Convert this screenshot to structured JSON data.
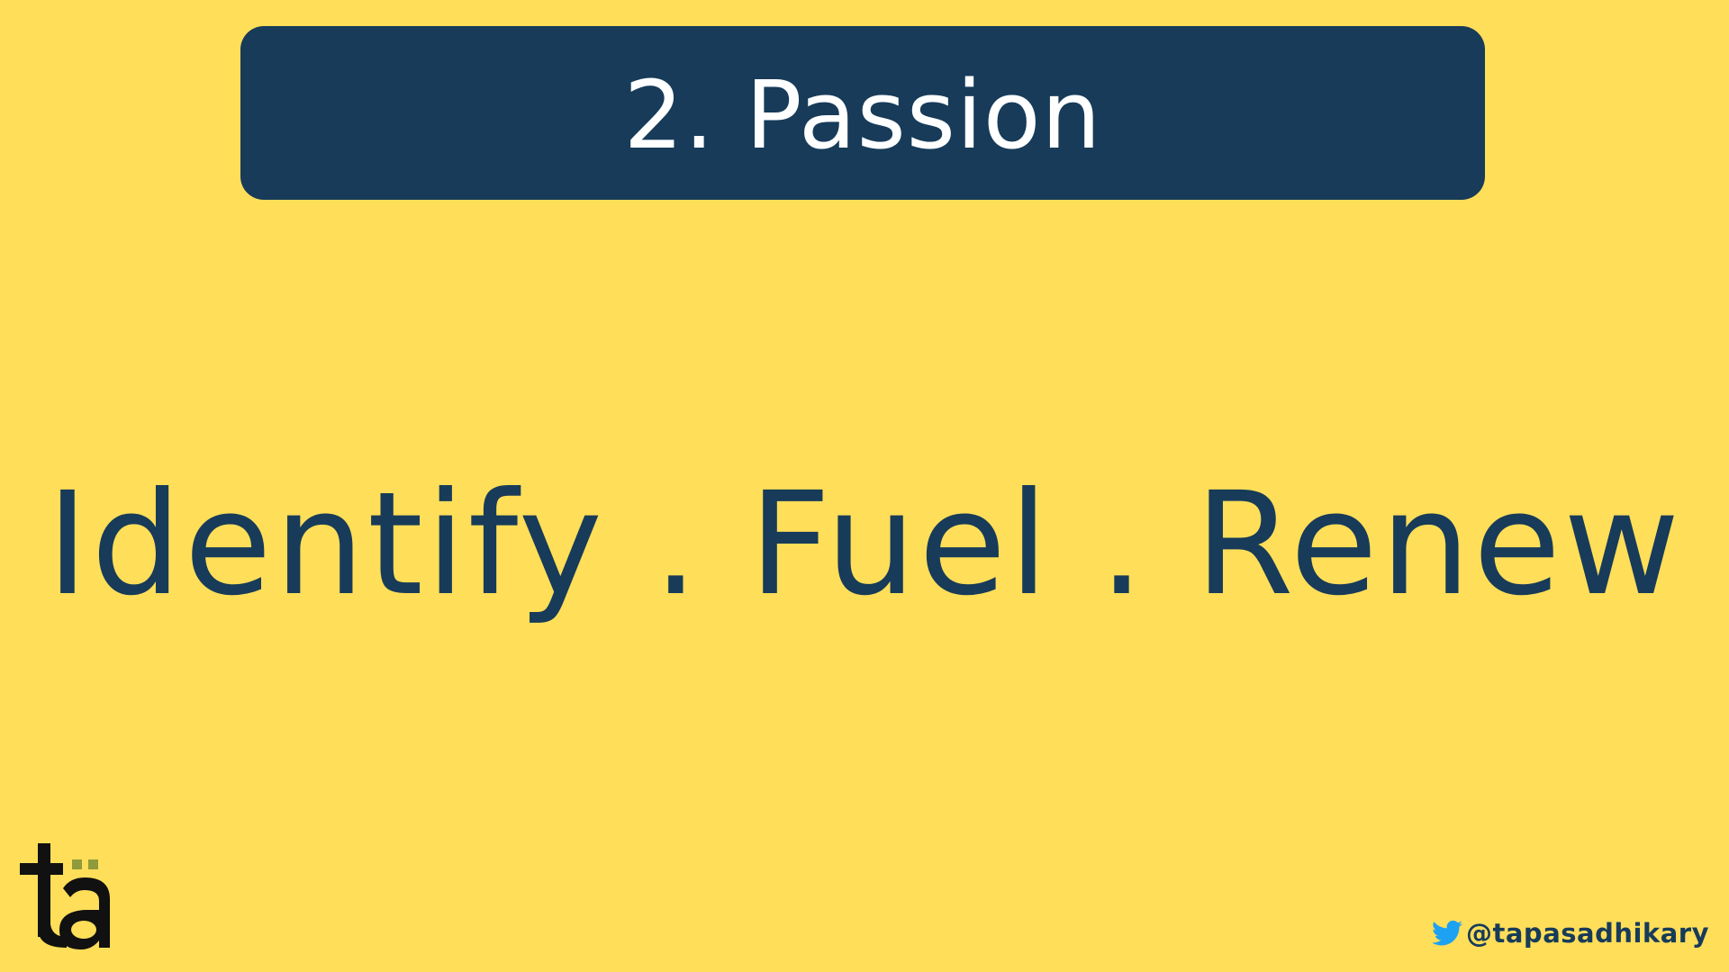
{
  "slide": {
    "title": "2. Passion",
    "tagline": "Identify . Fuel . Renew"
  },
  "branding": {
    "logo_icon": "ta-monogram-logo",
    "twitter_icon": "twitter-bird-icon",
    "twitter_handle": "@tapasadhikary"
  },
  "colors": {
    "background": "#FFDE59",
    "banner": "#173B59",
    "title_text": "#FFFFFF",
    "body_text": "#173B59",
    "logo_dark": "#111111",
    "logo_accent": "#8E9A3C",
    "twitter_blue": "#1DA1F2"
  }
}
